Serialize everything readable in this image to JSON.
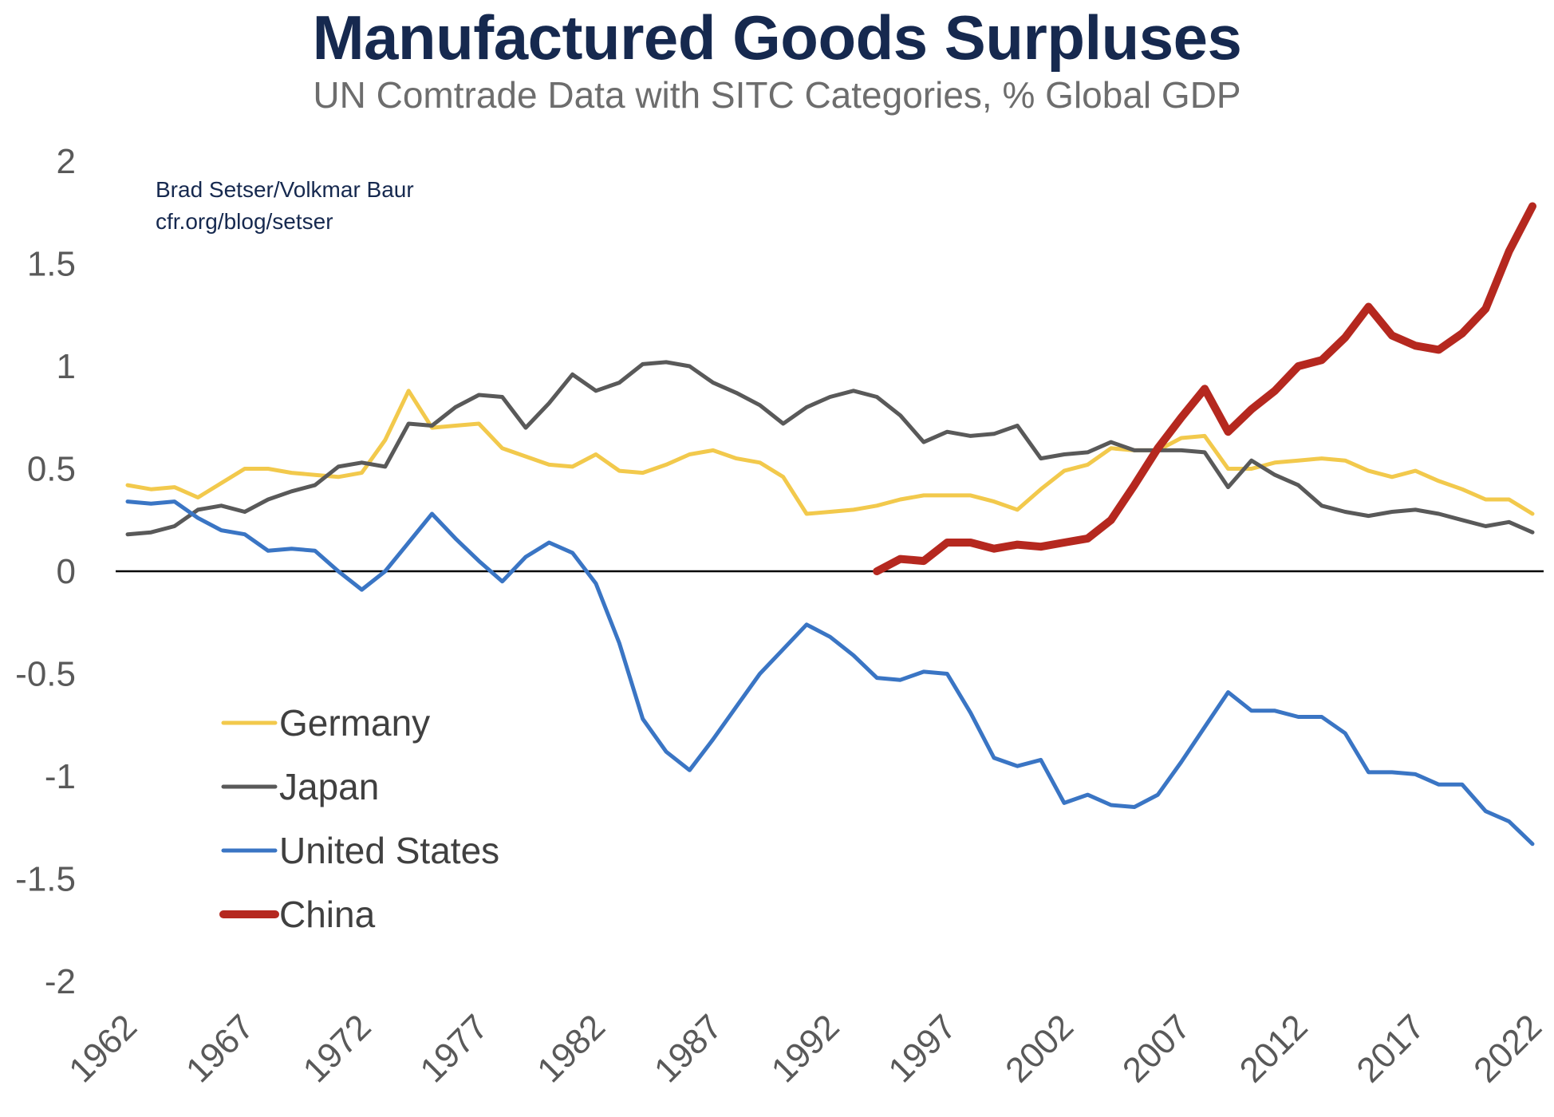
{
  "title": "Manufactured Goods Surpluses",
  "subtitle": "UN Comtrade Data with SITC Categories, % Global GDP",
  "credit": {
    "line1": "Brad Setser/Volkmar Baur",
    "line2": "cfr.org/blog/setser"
  },
  "chart_data": {
    "type": "line",
    "title": "Manufactured Goods Surpluses",
    "subtitle": "UN Comtrade Data with SITC Categories, % Global GDP",
    "xlabel": "",
    "ylabel": "",
    "ylim": [
      -2,
      2
    ],
    "xlim": [
      1962,
      2022
    ],
    "yticks": [
      "2",
      "1.5",
      "1",
      "0.5",
      "0",
      "-0.5",
      "-1",
      "-1.5",
      "-2"
    ],
    "ytick_values": [
      2,
      1.5,
      1,
      0.5,
      0,
      -0.5,
      -1,
      -1.5,
      -2
    ],
    "xticks": [
      "1962",
      "1967",
      "1972",
      "1977",
      "1982",
      "1987",
      "1992",
      "1997",
      "2002",
      "2007",
      "2012",
      "2017",
      "2022"
    ],
    "xtick_values": [
      1962,
      1967,
      1972,
      1977,
      1982,
      1987,
      1992,
      1997,
      2002,
      2007,
      2012,
      2017,
      2022
    ],
    "grid": false,
    "zero_line": true,
    "legend_position": "lower-left",
    "series": [
      {
        "name": "Germany",
        "color": "#f2c94c",
        "width": 5,
        "x": [
          1962,
          1963,
          1964,
          1965,
          1966,
          1967,
          1968,
          1969,
          1970,
          1971,
          1972,
          1973,
          1974,
          1975,
          1976,
          1977,
          1978,
          1979,
          1980,
          1981,
          1982,
          1983,
          1984,
          1985,
          1986,
          1987,
          1988,
          1989,
          1990,
          1991,
          1992,
          1993,
          1994,
          1995,
          1996,
          1997,
          1998,
          1999,
          2000,
          2001,
          2002,
          2003,
          2004,
          2005,
          2006,
          2007,
          2008,
          2009,
          2010,
          2011,
          2012,
          2013,
          2014,
          2015,
          2016,
          2017,
          2018,
          2019,
          2020,
          2021,
          2022
        ],
        "values": [
          0.42,
          0.4,
          0.41,
          0.36,
          0.43,
          0.5,
          0.5,
          0.48,
          0.47,
          0.46,
          0.48,
          0.64,
          0.88,
          0.7,
          0.71,
          0.72,
          0.6,
          0.56,
          0.52,
          0.51,
          0.57,
          0.49,
          0.48,
          0.52,
          0.57,
          0.59,
          0.55,
          0.53,
          0.46,
          0.28,
          0.29,
          0.3,
          0.32,
          0.35,
          0.37,
          0.37,
          0.37,
          0.34,
          0.3,
          0.4,
          0.49,
          0.52,
          0.6,
          0.59,
          0.59,
          0.65,
          0.66,
          0.5,
          0.5,
          0.53,
          0.54,
          0.55,
          0.54,
          0.49,
          0.46,
          0.49,
          0.44,
          0.4,
          0.35,
          0.35,
          0.28
        ]
      },
      {
        "name": "Japan",
        "color": "#595959",
        "width": 5,
        "x": [
          1962,
          1963,
          1964,
          1965,
          1966,
          1967,
          1968,
          1969,
          1970,
          1971,
          1972,
          1973,
          1974,
          1975,
          1976,
          1977,
          1978,
          1979,
          1980,
          1981,
          1982,
          1983,
          1984,
          1985,
          1986,
          1987,
          1988,
          1989,
          1990,
          1991,
          1992,
          1993,
          1994,
          1995,
          1996,
          1997,
          1998,
          1999,
          2000,
          2001,
          2002,
          2003,
          2004,
          2005,
          2006,
          2007,
          2008,
          2009,
          2010,
          2011,
          2012,
          2013,
          2014,
          2015,
          2016,
          2017,
          2018,
          2019,
          2020,
          2021,
          2022
        ],
        "values": [
          0.18,
          0.19,
          0.22,
          0.3,
          0.32,
          0.29,
          0.35,
          0.39,
          0.42,
          0.51,
          0.53,
          0.51,
          0.72,
          0.71,
          0.8,
          0.86,
          0.85,
          0.7,
          0.82,
          0.96,
          0.88,
          0.92,
          1.01,
          1.02,
          1.0,
          0.92,
          0.87,
          0.81,
          0.72,
          0.8,
          0.85,
          0.88,
          0.85,
          0.76,
          0.63,
          0.68,
          0.66,
          0.67,
          0.71,
          0.55,
          0.57,
          0.58,
          0.63,
          0.59,
          0.59,
          0.59,
          0.58,
          0.41,
          0.54,
          0.47,
          0.42,
          0.32,
          0.29,
          0.27,
          0.29,
          0.3,
          0.28,
          0.25,
          0.22,
          0.24,
          0.19
        ]
      },
      {
        "name": "United States",
        "color": "#3a75c4",
        "width": 5,
        "x": [
          1962,
          1963,
          1964,
          1965,
          1966,
          1967,
          1968,
          1969,
          1970,
          1971,
          1972,
          1973,
          1974,
          1975,
          1976,
          1977,
          1978,
          1979,
          1980,
          1981,
          1982,
          1983,
          1984,
          1985,
          1986,
          1987,
          1988,
          1989,
          1990,
          1991,
          1992,
          1993,
          1994,
          1995,
          1996,
          1997,
          1998,
          1999,
          2000,
          2001,
          2002,
          2003,
          2004,
          2005,
          2006,
          2007,
          2008,
          2009,
          2010,
          2011,
          2012,
          2013,
          2014,
          2015,
          2016,
          2017,
          2018,
          2019,
          2020,
          2021,
          2022
        ],
        "values": [
          0.34,
          0.33,
          0.34,
          0.26,
          0.2,
          0.18,
          0.1,
          0.11,
          0.1,
          0.0,
          -0.09,
          0.0,
          0.14,
          0.28,
          0.16,
          0.05,
          -0.05,
          0.07,
          0.14,
          0.09,
          -0.06,
          -0.35,
          -0.72,
          -0.88,
          -0.97,
          -0.82,
          -0.66,
          -0.5,
          -0.38,
          -0.26,
          -0.32,
          -0.41,
          -0.52,
          -0.53,
          -0.49,
          -0.5,
          -0.69,
          -0.91,
          -0.95,
          -0.92,
          -1.13,
          -1.09,
          -1.14,
          -1.15,
          -1.09,
          -0.93,
          -0.76,
          -0.59,
          -0.68,
          -0.68,
          -0.71,
          -0.71,
          -0.79,
          -0.98,
          -0.98,
          -0.99,
          -1.04,
          -1.04,
          -1.17,
          -1.22,
          -1.33
        ]
      },
      {
        "name": "China",
        "color": "#b5281f",
        "width": 10,
        "x": [
          1994,
          1995,
          1996,
          1997,
          1998,
          1999,
          2000,
          2001,
          2002,
          2003,
          2004,
          2005,
          2006,
          2007,
          2008,
          2009,
          2010,
          2011,
          2012,
          2013,
          2014,
          2015,
          2016,
          2017,
          2018,
          2019,
          2020,
          2021,
          2022
        ],
        "values": [
          0.0,
          0.06,
          0.05,
          0.14,
          0.14,
          0.11,
          0.13,
          0.12,
          0.14,
          0.16,
          0.25,
          0.42,
          0.6,
          0.75,
          0.89,
          0.68,
          0.79,
          0.88,
          1.0,
          1.03,
          1.14,
          1.29,
          1.15,
          1.1,
          1.08,
          1.16,
          1.28,
          1.56,
          1.78
        ]
      }
    ]
  }
}
